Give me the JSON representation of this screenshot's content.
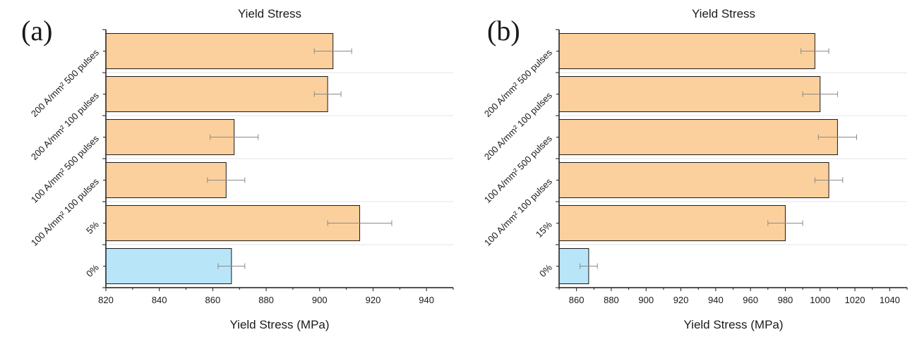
{
  "chart_data": [
    {
      "type": "bar",
      "orientation": "horizontal",
      "panel_label": "(a)",
      "title": "Yield Stress",
      "xlabel": "Yield Stress (MPa)",
      "xlim": [
        820,
        950
      ],
      "xticks": [
        820,
        840,
        860,
        880,
        900,
        920,
        940
      ],
      "categories": [
        "0%",
        "5%",
        "100 A/mm² 100 pulses",
        "100 A/mm² 500 pulses",
        "200 A/mm² 100 pulses",
        "200 A/mm² 500 pulses"
      ],
      "values": [
        867,
        915,
        865,
        868,
        903,
        905
      ],
      "errors": [
        5,
        12,
        7,
        9,
        5,
        7
      ],
      "bar_colors": [
        "#b9e5f8",
        "#fbd09d",
        "#fbd09d",
        "#fbd09d",
        "#fbd09d",
        "#fbd09d"
      ],
      "grid": true
    },
    {
      "type": "bar",
      "orientation": "horizontal",
      "panel_label": "(b)",
      "title": "Yield Stress",
      "xlabel": "Yield Stress (MPa)",
      "xlim": [
        850,
        1050
      ],
      "xticks": [
        860,
        880,
        900,
        920,
        940,
        960,
        980,
        1000,
        1020,
        1040
      ],
      "categories": [
        "0%",
        "15%",
        "100 A/mm² 100 pulses",
        "100 A/mm² 500 pulses",
        "200 A/mm² 100 pulses",
        "200 A/mm² 500 pulses"
      ],
      "values": [
        867,
        980,
        1005,
        1010,
        1000,
        997
      ],
      "errors": [
        5,
        10,
        8,
        11,
        10,
        8
      ],
      "bar_colors": [
        "#b9e5f8",
        "#fbd09d",
        "#fbd09d",
        "#fbd09d",
        "#fbd09d",
        "#fbd09d"
      ],
      "grid": true
    }
  ]
}
